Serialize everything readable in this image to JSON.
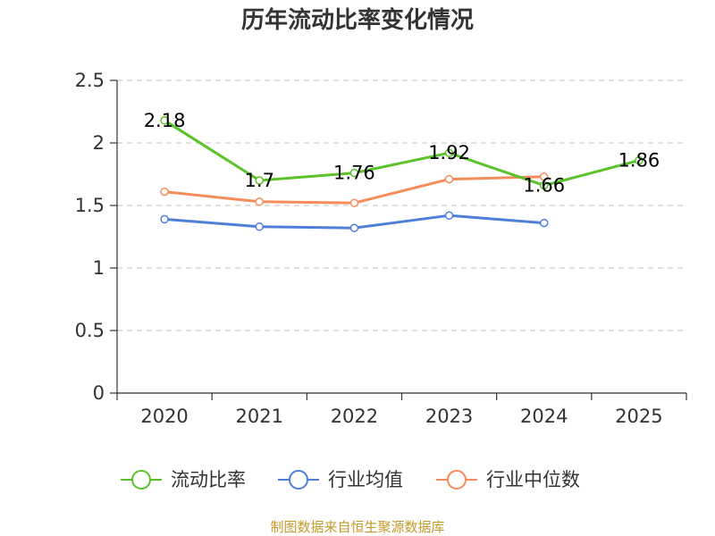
{
  "chart_data": {
    "type": "line",
    "title": "历年流动比率变化情况",
    "categories": [
      "2020",
      "2021",
      "2022",
      "2023",
      "2024",
      "2025"
    ],
    "ylim": [
      0,
      2.5
    ],
    "yticks": [
      "0",
      "0.5",
      "1",
      "1.5",
      "2",
      "2.5"
    ],
    "ytick_values": [
      0,
      0.5,
      1,
      1.5,
      2,
      2.5
    ],
    "grid": true,
    "legend_position": "bottom",
    "series": [
      {
        "name": "流动比率",
        "color": "#5cc22b",
        "values": [
          2.18,
          1.7,
          1.76,
          1.92,
          1.66,
          1.86
        ],
        "labels": [
          "2.18",
          "1.7",
          "1.76",
          "1.92",
          "1.66",
          "1.86"
        ]
      },
      {
        "name": "行业均值",
        "color": "#4f7fd9",
        "values": [
          1.39,
          1.33,
          1.32,
          1.42,
          1.36,
          null
        ]
      },
      {
        "name": "行业中位数",
        "color": "#f58c5a",
        "values": [
          1.61,
          1.53,
          1.52,
          1.71,
          1.73,
          null
        ]
      }
    ],
    "source": "制图数据来自恒生聚源数据库"
  }
}
